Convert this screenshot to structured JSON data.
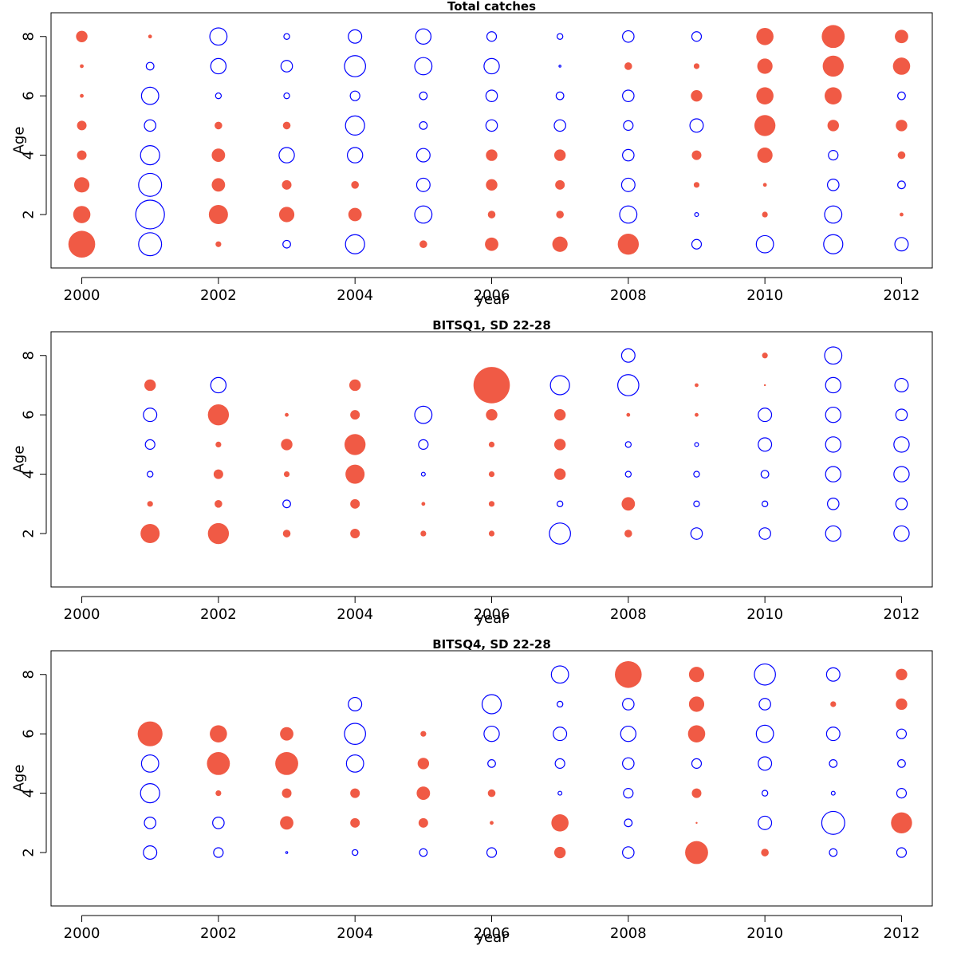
{
  "figure": {
    "colors": {
      "positive": "#f05a45",
      "negative": "#0000ff"
    }
  },
  "chart_data": [
    {
      "type": "scatter",
      "title": "Total catches",
      "xlabel": "year",
      "ylabel": "Age",
      "xlim": [
        1999.55,
        2012.45
      ],
      "ylim": [
        0.2,
        8.8
      ],
      "xticks": [
        2000,
        2002,
        2004,
        2006,
        2008,
        2010,
        2012
      ],
      "yticks": [
        2,
        4,
        6,
        8
      ],
      "years": [
        2000,
        2001,
        2002,
        2003,
        2004,
        2005,
        2006,
        2007,
        2008,
        2009,
        2010,
        2011,
        2012
      ],
      "ages": [
        1,
        2,
        3,
        4,
        5,
        6,
        7,
        8
      ],
      "values": [
        [
          14,
          -12,
          3,
          -4,
          -10,
          4,
          7,
          8,
          11,
          -5,
          -9,
          -10,
          -7
        ],
        [
          9,
          -15,
          10,
          8,
          7,
          -9,
          4,
          4,
          -9,
          -2,
          3,
          -9,
          2
        ],
        [
          8,
          -12,
          7,
          5,
          4,
          -7,
          6,
          5,
          -7,
          3,
          2,
          -6,
          -4
        ],
        [
          5,
          -10,
          7,
          -8,
          -8,
          -7,
          6,
          6,
          -6,
          5,
          8,
          -5,
          4
        ],
        [
          5,
          -6,
          4,
          4,
          -10,
          -4,
          -6,
          -6,
          -5,
          -7,
          11,
          6,
          6
        ],
        [
          2,
          -9,
          -3,
          -3,
          -5,
          -4,
          -6,
          -4,
          -6,
          6,
          9,
          9,
          -4
        ],
        [
          2,
          -4,
          -8,
          -6,
          -11,
          -9,
          -8,
          -1,
          4,
          3,
          8,
          11,
          9
        ],
        [
          6,
          2,
          -9,
          -3,
          -7,
          -8,
          -5,
          -3,
          -6,
          -5,
          9,
          12,
          7
        ]
      ]
    },
    {
      "type": "scatter",
      "title": "BITSQ1, SD 22-28",
      "xlabel": "year",
      "ylabel": "Age",
      "xlim": [
        1999.55,
        2012.45
      ],
      "ylim": [
        0.2,
        8.8
      ],
      "xticks": [
        2000,
        2002,
        2004,
        2006,
        2008,
        2010,
        2012
      ],
      "yticks": [
        2,
        4,
        6,
        8
      ],
      "years": [
        2000,
        2001,
        2002,
        2003,
        2004,
        2005,
        2006,
        2007,
        2008,
        2009,
        2010,
        2011,
        2012
      ],
      "ages": [
        1,
        2,
        3,
        4,
        5,
        6,
        7,
        8
      ],
      "values": [
        [
          null,
          null,
          null,
          null,
          null,
          null,
          null,
          null,
          null,
          null,
          null,
          null,
          null
        ],
        [
          null,
          10,
          11,
          4,
          5,
          3,
          3,
          -11,
          4,
          -6,
          -6,
          -8,
          -8
        ],
        [
          null,
          3,
          4,
          -4,
          5,
          2,
          3,
          -3,
          7,
          -3,
          -3,
          -6,
          -6
        ],
        [
          null,
          -3,
          5,
          3,
          10,
          -2,
          3,
          6,
          -3,
          -3,
          -4,
          -8,
          -8
        ],
        [
          null,
          -5,
          3,
          6,
          11,
          -5,
          3,
          6,
          -3,
          -2,
          -7,
          -8,
          -8
        ],
        [
          null,
          -7,
          11,
          2,
          5,
          -9,
          6,
          6,
          2,
          2,
          -7,
          -8,
          -6
        ],
        [
          null,
          6,
          -8,
          null,
          6,
          null,
          19,
          -10,
          -11,
          2,
          1,
          -8,
          -7
        ],
        [
          null,
          null,
          null,
          null,
          null,
          null,
          null,
          null,
          -7,
          null,
          3,
          -9,
          null
        ]
      ]
    },
    {
      "type": "scatter",
      "title": "BITSQ4, SD 22-28",
      "xlabel": "year",
      "ylabel": "Age",
      "xlim": [
        1999.55,
        2012.45
      ],
      "ylim": [
        0.2,
        8.8
      ],
      "xticks": [
        2000,
        2002,
        2004,
        2006,
        2008,
        2010,
        2012
      ],
      "yticks": [
        2,
        4,
        6,
        8
      ],
      "years": [
        2000,
        2001,
        2002,
        2003,
        2004,
        2005,
        2006,
        2007,
        2008,
        2009,
        2010,
        2011,
        2012
      ],
      "ages": [
        1,
        2,
        3,
        4,
        5,
        6,
        7,
        8
      ],
      "values": [
        [
          null,
          null,
          null,
          null,
          null,
          null,
          null,
          null,
          null,
          null,
          null,
          null,
          null
        ],
        [
          null,
          -7,
          -5,
          -1,
          -3,
          -4,
          -5,
          6,
          -6,
          12,
          4,
          -4,
          -5
        ],
        [
          null,
          -6,
          -6,
          7,
          5,
          5,
          2,
          9,
          -4,
          1,
          -7,
          -12,
          11
        ],
        [
          null,
          -10,
          3,
          5,
          5,
          7,
          4,
          -2,
          -5,
          5,
          -3,
          -2,
          -5
        ],
        [
          null,
          -9,
          12,
          12,
          -9,
          6,
          -4,
          -5,
          -6,
          -5,
          -7,
          -4,
          -4
        ],
        [
          null,
          13,
          9,
          7,
          -11,
          3,
          -8,
          -7,
          -8,
          9,
          -9,
          -7,
          -5
        ],
        [
          null,
          null,
          null,
          null,
          -7,
          null,
          -10,
          -3,
          -6,
          8,
          -6,
          3,
          6
        ],
        [
          null,
          null,
          null,
          null,
          null,
          null,
          null,
          -9,
          14,
          8,
          -11,
          -7,
          6
        ]
      ]
    }
  ]
}
